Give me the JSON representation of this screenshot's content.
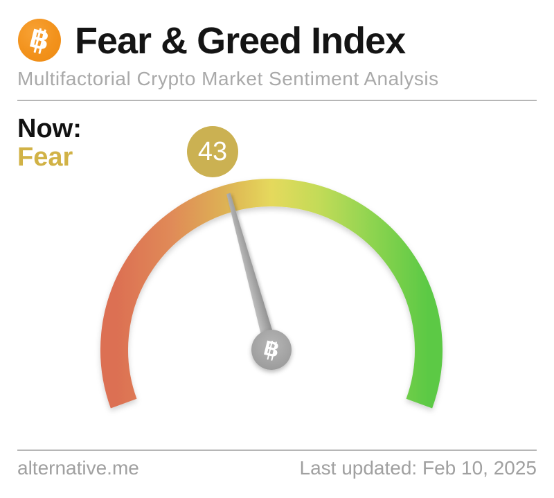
{
  "header": {
    "title": "Fear & Greed Index",
    "subtitle": "Multifactorial Crypto Market Sentiment Analysis",
    "logo": {
      "symbol": "B",
      "color": "#f2921c"
    }
  },
  "status": {
    "now_label": "Now:",
    "sentiment": "Fear",
    "sentiment_color": "#d1b246",
    "value": "43",
    "badge_color": "#cbb152"
  },
  "gauge": {
    "hub_symbol": "B",
    "needle_color_light": "#c3c3c3",
    "needle_color_dark": "#8e8e8e"
  },
  "footer": {
    "site": "alternative.me",
    "last_updated": "Last updated: Feb 10, 2025"
  },
  "chart_data": {
    "type": "gauge",
    "title": "Fear & Greed Index",
    "subtitle": "Multifactorial Crypto Market Sentiment Analysis",
    "value": 43,
    "min": 0,
    "max": 100,
    "label": "Fear",
    "arc_span_degrees": 220,
    "annotations": [
      "Now: Fear",
      "43",
      "Last updated: Feb 10, 2025"
    ],
    "gradient_stops": [
      {
        "offset": 0.0,
        "color": "#dc6f52"
      },
      {
        "offset": 0.18,
        "color": "#e08a58"
      },
      {
        "offset": 0.35,
        "color": "#ddb154"
      },
      {
        "offset": 0.5,
        "color": "#e5d95c"
      },
      {
        "offset": 0.65,
        "color": "#c3db58"
      },
      {
        "offset": 0.82,
        "color": "#8ed450"
      },
      {
        "offset": 1.0,
        "color": "#5bc944"
      }
    ]
  }
}
